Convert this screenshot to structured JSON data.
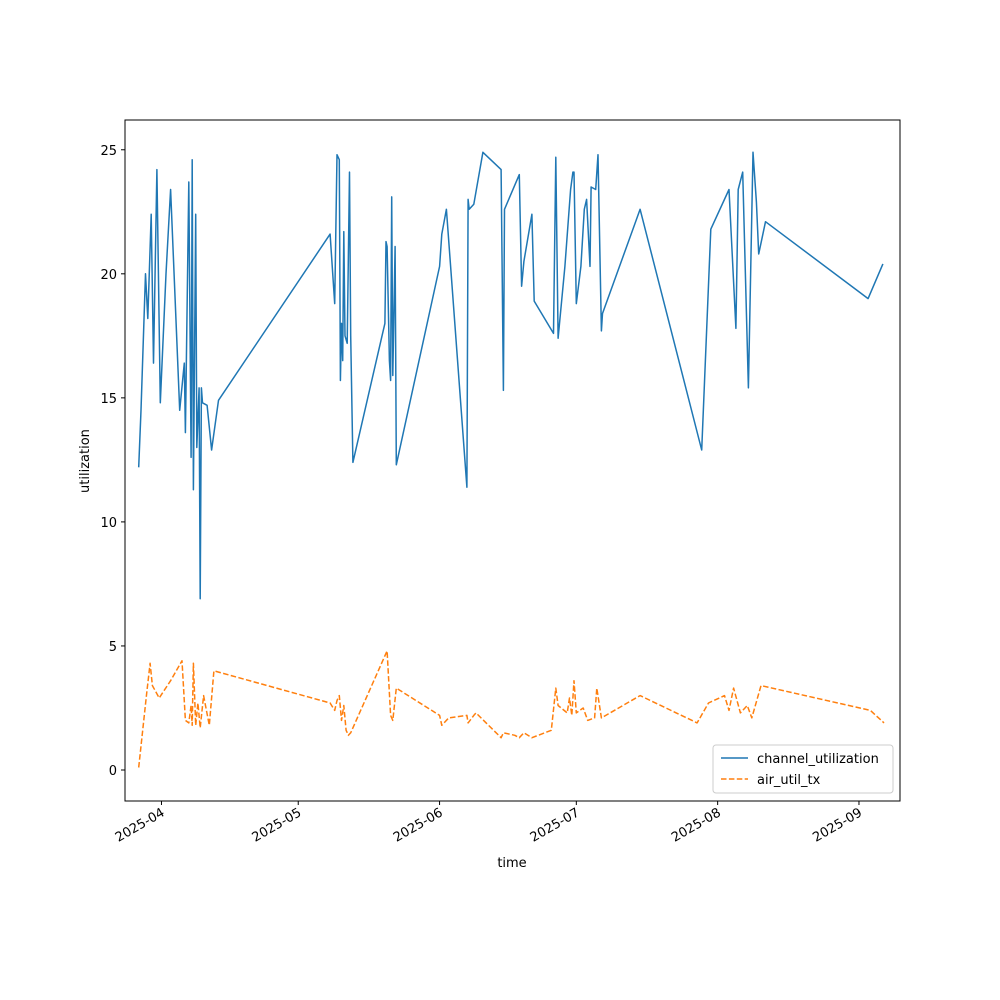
{
  "chart_data": {
    "type": "line",
    "title": "",
    "xlabel": "time",
    "ylabel": "utilization",
    "x_tick_labels": [
      "2025-04",
      "2025-05",
      "2025-06",
      "2025-07",
      "2025-08",
      "2025-09"
    ],
    "x_tick_dates": [
      "2025-04-01",
      "2025-05-01",
      "2025-06-01",
      "2025-07-01",
      "2025-08-01",
      "2025-09-01"
    ],
    "x_range": [
      "2025-03-24",
      "2025-09-10"
    ],
    "y_ticks": [
      0,
      5,
      10,
      15,
      20,
      25
    ],
    "ylim": [
      -1.25,
      26.2
    ],
    "grid": false,
    "legend_position": "lower right",
    "series": [
      {
        "name": "channel_utilization",
        "color": "#1f77b4",
        "linestyle": "solid",
        "points": [
          [
            "2025-03-27T00:00",
            12.2
          ],
          [
            "2025-03-27T12:00",
            14.5
          ],
          [
            "2025-03-28T12:00",
            20.0
          ],
          [
            "2025-03-29T00:00",
            18.2
          ],
          [
            "2025-03-29T18:00",
            22.4
          ],
          [
            "2025-03-30T06:00",
            16.4
          ],
          [
            "2025-03-31T00:00",
            24.2
          ],
          [
            "2025-03-31T18:00",
            14.8
          ],
          [
            "2025-04-02T00:00",
            20.0
          ],
          [
            "2025-04-03T00:00",
            23.4
          ],
          [
            "2025-04-05T00:00",
            14.5
          ],
          [
            "2025-04-06T00:00",
            16.4
          ],
          [
            "2025-04-06T06:00",
            13.6
          ],
          [
            "2025-04-07T00:00",
            23.7
          ],
          [
            "2025-04-07T12:00",
            12.6
          ],
          [
            "2025-04-07T18:00",
            24.6
          ],
          [
            "2025-04-08T00:00",
            11.3
          ],
          [
            "2025-04-08T12:00",
            22.4
          ],
          [
            "2025-04-08T18:00",
            13.0
          ],
          [
            "2025-04-09T06:00",
            15.4
          ],
          [
            "2025-04-09T12:00",
            6.9
          ],
          [
            "2025-04-09T18:00",
            15.4
          ],
          [
            "2025-04-10T00:00",
            14.8
          ],
          [
            "2025-04-11T00:00",
            14.7
          ],
          [
            "2025-04-12T00:00",
            12.9
          ],
          [
            "2025-04-13T12:00",
            14.9
          ],
          [
            "2025-05-08T00:00",
            21.6
          ],
          [
            "2025-05-09T00:00",
            18.8
          ],
          [
            "2025-05-09T12:00",
            24.8
          ],
          [
            "2025-05-10T00:00",
            24.6
          ],
          [
            "2025-05-10T06:00",
            15.7
          ],
          [
            "2025-05-10T12:00",
            18.0
          ],
          [
            "2025-05-10T18:00",
            16.5
          ],
          [
            "2025-05-11T00:00",
            21.7
          ],
          [
            "2025-05-11T06:00",
            17.5
          ],
          [
            "2025-05-11T18:00",
            17.2
          ],
          [
            "2025-05-12T06:00",
            24.1
          ],
          [
            "2025-05-12T12:00",
            17.5
          ],
          [
            "2025-05-13T00:00",
            12.4
          ],
          [
            "2025-05-20T00:00",
            18.0
          ],
          [
            "2025-05-20T06:00",
            21.3
          ],
          [
            "2025-05-20T12:00",
            21.1
          ],
          [
            "2025-05-21T00:00",
            16.5
          ],
          [
            "2025-05-21T06:00",
            15.7
          ],
          [
            "2025-05-21T12:00",
            23.1
          ],
          [
            "2025-05-21T18:00",
            15.9
          ],
          [
            "2025-05-22T06:00",
            21.1
          ],
          [
            "2025-05-22T12:00",
            12.3
          ],
          [
            "2025-06-01T00:00",
            20.3
          ],
          [
            "2025-06-01T12:00",
            21.6
          ],
          [
            "2025-06-02T12:00",
            22.6
          ],
          [
            "2025-06-07T00:00",
            11.4
          ],
          [
            "2025-06-07T06:00",
            23.0
          ],
          [
            "2025-06-07T12:00",
            22.6
          ],
          [
            "2025-06-08T12:00",
            22.8
          ],
          [
            "2025-06-10T12:00",
            24.9
          ],
          [
            "2025-06-14T12:00",
            24.2
          ],
          [
            "2025-06-15T00:00",
            15.3
          ],
          [
            "2025-06-15T06:00",
            22.6
          ],
          [
            "2025-06-18T12:00",
            24.0
          ],
          [
            "2025-06-19T00:00",
            19.5
          ],
          [
            "2025-06-19T12:00",
            20.5
          ],
          [
            "2025-06-21T06:00",
            22.4
          ],
          [
            "2025-06-21T18:00",
            18.9
          ],
          [
            "2025-06-26T00:00",
            17.6
          ],
          [
            "2025-06-26T12:00",
            24.7
          ],
          [
            "2025-06-27T00:00",
            17.4
          ],
          [
            "2025-06-28T12:00",
            20.3
          ],
          [
            "2025-06-29T18:00",
            23.4
          ],
          [
            "2025-06-30T06:00",
            24.1
          ],
          [
            "2025-06-30T12:00",
            24.1
          ],
          [
            "2025-07-01T00:00",
            18.8
          ],
          [
            "2025-07-02T00:00",
            20.3
          ],
          [
            "2025-07-02T18:00",
            22.6
          ],
          [
            "2025-07-03T06:00",
            23.0
          ],
          [
            "2025-07-04T00:00",
            20.3
          ],
          [
            "2025-07-04T06:00",
            23.5
          ],
          [
            "2025-07-05T06:00",
            23.4
          ],
          [
            "2025-07-05T18:00",
            24.8
          ],
          [
            "2025-07-06T12:00",
            17.7
          ],
          [
            "2025-07-06T18:00",
            18.4
          ],
          [
            "2025-07-15T00:00",
            22.6
          ],
          [
            "2025-07-28T12:00",
            12.9
          ],
          [
            "2025-07-30T12:00",
            21.8
          ],
          [
            "2025-08-03T12:00",
            23.4
          ],
          [
            "2025-08-05T00:00",
            17.8
          ],
          [
            "2025-08-05T12:00",
            23.4
          ],
          [
            "2025-08-06T12:00",
            24.1
          ],
          [
            "2025-08-07T18:00",
            15.4
          ],
          [
            "2025-08-08T18:00",
            24.9
          ],
          [
            "2025-08-09T12:00",
            22.9
          ],
          [
            "2025-08-10T00:00",
            20.8
          ],
          [
            "2025-08-11T12:00",
            22.1
          ],
          [
            "2025-09-03T00:00",
            19.0
          ],
          [
            "2025-09-06T06:00",
            20.4
          ]
        ]
      },
      {
        "name": "air_util_tx",
        "color": "#ff7f0e",
        "linestyle": "dashed",
        "points": [
          [
            "2025-03-27T00:00",
            0.1
          ],
          [
            "2025-03-28T18:00",
            3.1
          ],
          [
            "2025-03-29T12:00",
            4.3
          ],
          [
            "2025-03-30T00:00",
            3.4
          ],
          [
            "2025-03-31T12:00",
            2.9
          ],
          [
            "2025-04-03T00:00",
            3.6
          ],
          [
            "2025-04-05T12:00",
            4.4
          ],
          [
            "2025-04-06T06:00",
            2.0
          ],
          [
            "2025-04-07T00:00",
            1.9
          ],
          [
            "2025-04-07T12:00",
            2.6
          ],
          [
            "2025-04-07T18:00",
            1.8
          ],
          [
            "2025-04-08T00:00",
            4.3
          ],
          [
            "2025-04-08T12:00",
            1.8
          ],
          [
            "2025-04-09T00:00",
            2.7
          ],
          [
            "2025-04-09T12:00",
            1.7
          ],
          [
            "2025-04-10T06:00",
            3.0
          ],
          [
            "2025-04-11T12:00",
            1.8
          ],
          [
            "2025-04-12T12:00",
            4.0
          ],
          [
            "2025-05-08T00:00",
            2.7
          ],
          [
            "2025-05-09T00:00",
            2.4
          ],
          [
            "2025-05-09T12:00",
            2.8
          ],
          [
            "2025-05-10T00:00",
            3.0
          ],
          [
            "2025-05-10T12:00",
            2.0
          ],
          [
            "2025-05-11T00:00",
            2.6
          ],
          [
            "2025-05-11T12:00",
            1.6
          ],
          [
            "2025-05-12T00:00",
            1.4
          ],
          [
            "2025-05-12T12:00",
            1.5
          ],
          [
            "2025-05-20T12:00",
            4.8
          ],
          [
            "2025-05-21T06:00",
            2.2
          ],
          [
            "2025-05-21T18:00",
            2.0
          ],
          [
            "2025-05-22T12:00",
            3.3
          ],
          [
            "2025-06-01T00:00",
            2.2
          ],
          [
            "2025-06-01T12:00",
            1.8
          ],
          [
            "2025-06-03T00:00",
            2.1
          ],
          [
            "2025-06-07T00:00",
            2.2
          ],
          [
            "2025-06-07T06:00",
            1.9
          ],
          [
            "2025-06-08T12:00",
            2.2
          ],
          [
            "2025-06-09T00:00",
            2.3
          ],
          [
            "2025-06-14T12:00",
            1.3
          ],
          [
            "2025-06-15T00:00",
            1.5
          ],
          [
            "2025-06-17T12:00",
            1.4
          ],
          [
            "2025-06-18T12:00",
            1.3
          ],
          [
            "2025-06-19T12:00",
            1.5
          ],
          [
            "2025-06-21T06:00",
            1.3
          ],
          [
            "2025-06-25T12:00",
            1.6
          ],
          [
            "2025-06-26T12:00",
            3.3
          ],
          [
            "2025-06-27T00:00",
            2.6
          ],
          [
            "2025-06-29T00:00",
            2.3
          ],
          [
            "2025-06-29T12:00",
            2.9
          ],
          [
            "2025-06-30T00:00",
            2.2
          ],
          [
            "2025-06-30T12:00",
            3.6
          ],
          [
            "2025-07-01T00:00",
            2.3
          ],
          [
            "2025-07-02T12:00",
            2.5
          ],
          [
            "2025-07-03T12:00",
            2.0
          ],
          [
            "2025-07-05T00:00",
            2.1
          ],
          [
            "2025-07-05T12:00",
            3.3
          ],
          [
            "2025-07-06T12:00",
            2.1
          ],
          [
            "2025-07-15T00:00",
            3.0
          ],
          [
            "2025-07-27T12:00",
            1.9
          ],
          [
            "2025-07-30T00:00",
            2.7
          ],
          [
            "2025-08-02T12:00",
            3.0
          ],
          [
            "2025-08-03T12:00",
            2.4
          ],
          [
            "2025-08-04T12:00",
            3.3
          ],
          [
            "2025-08-06T00:00",
            2.3
          ],
          [
            "2025-08-07T12:00",
            2.6
          ],
          [
            "2025-08-08T12:00",
            2.1
          ],
          [
            "2025-08-10T12:00",
            3.4
          ],
          [
            "2025-09-03T12:00",
            2.4
          ],
          [
            "2025-09-06T12:00",
            1.9
          ]
        ]
      }
    ]
  }
}
